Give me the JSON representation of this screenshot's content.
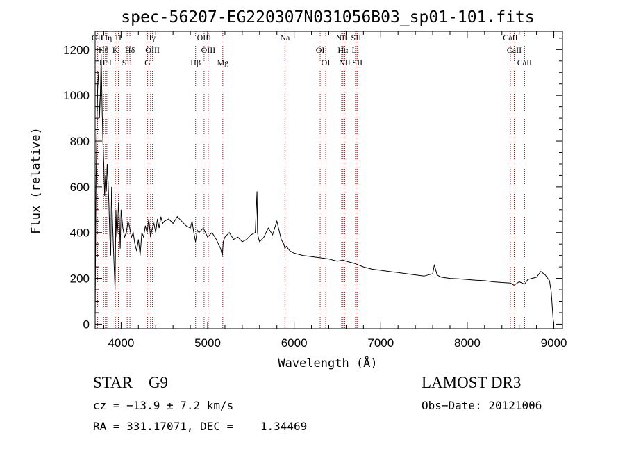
{
  "chart_data": {
    "type": "line",
    "title": "spec-56207-EG220307N031056B03_sp01-101.fits",
    "xlabel": "Wavelength (Å)",
    "ylabel": "Flux (relative)",
    "xlim": [
      3700,
      9100
    ],
    "ylim": [
      -20,
      1280
    ],
    "xticks": [
      4000,
      5000,
      6000,
      7000,
      8000,
      9000
    ],
    "yticks": [
      0,
      200,
      400,
      600,
      800,
      1000,
      1200
    ],
    "grid": false,
    "series": [
      {
        "name": "flux",
        "x": [
          3700,
          3710,
          3720,
          3730,
          3740,
          3750,
          3760,
          3770,
          3780,
          3790,
          3800,
          3810,
          3820,
          3830,
          3840,
          3850,
          3860,
          3870,
          3880,
          3890,
          3900,
          3910,
          3920,
          3930,
          3940,
          3950,
          3960,
          3970,
          3980,
          3990,
          4000,
          4020,
          4040,
          4060,
          4080,
          4100,
          4120,
          4140,
          4160,
          4180,
          4200,
          4220,
          4240,
          4260,
          4280,
          4300,
          4320,
          4340,
          4360,
          4380,
          4400,
          4420,
          4440,
          4460,
          4480,
          4500,
          4550,
          4600,
          4650,
          4700,
          4750,
          4800,
          4820,
          4840,
          4860,
          4880,
          4900,
          4950,
          5000,
          5050,
          5100,
          5150,
          5170,
          5180,
          5200,
          5250,
          5300,
          5350,
          5400,
          5450,
          5500,
          5550,
          5570,
          5577,
          5585,
          5600,
          5650,
          5700,
          5750,
          5800,
          5850,
          5880,
          5893,
          5910,
          5950,
          6000,
          6100,
          6200,
          6300,
          6400,
          6500,
          6563,
          6600,
          6700,
          6800,
          6900,
          7000,
          7100,
          7200,
          7300,
          7400,
          7500,
          7600,
          7620,
          7650,
          7700,
          7800,
          7900,
          8000,
          8100,
          8200,
          8300,
          8400,
          8500,
          8540,
          8600,
          8662,
          8700,
          8800,
          8850,
          8900,
          8950,
          8970,
          8990,
          9000
        ],
        "y": [
          20,
          600,
          850,
          1050,
          1100,
          900,
          1000,
          1180,
          950,
          800,
          700,
          560,
          650,
          580,
          700,
          620,
          520,
          380,
          300,
          600,
          460,
          350,
          250,
          150,
          500,
          380,
          420,
          530,
          460,
          330,
          500,
          420,
          380,
          400,
          450,
          420,
          380,
          400,
          350,
          320,
          370,
          300,
          400,
          380,
          430,
          400,
          460,
          380,
          420,
          440,
          400,
          460,
          420,
          470,
          440,
          450,
          460,
          440,
          470,
          450,
          430,
          420,
          450,
          400,
          360,
          410,
          400,
          420,
          380,
          400,
          370,
          330,
          300,
          360,
          380,
          400,
          370,
          380,
          360,
          370,
          390,
          400,
          580,
          400,
          380,
          360,
          380,
          420,
          390,
          450,
          370,
          350,
          330,
          340,
          320,
          310,
          300,
          295,
          290,
          285,
          275,
          280,
          275,
          265,
          250,
          240,
          235,
          230,
          225,
          220,
          215,
          210,
          220,
          260,
          215,
          205,
          200,
          198,
          195,
          192,
          190,
          185,
          182,
          180,
          170,
          185,
          175,
          195,
          205,
          230,
          215,
          190,
          140,
          30,
          0
        ]
      }
    ],
    "lines": [
      {
        "name": "OII",
        "wave": 3727
      },
      {
        "name": "Hθ",
        "wave": 3798
      },
      {
        "name": "HeI",
        "wave": 3819
      },
      {
        "name": "Hη",
        "wave": 3835
      },
      {
        "name": "K",
        "wave": 3934
      },
      {
        "name": "SII",
        "wave": 4070
      },
      {
        "name": "H",
        "wave": 3969
      },
      {
        "name": "Hδ",
        "wave": 4102
      },
      {
        "name": "G",
        "wave": 4305
      },
      {
        "name": "Hγ",
        "wave": 4341
      },
      {
        "name": "OIII",
        "wave": 4363
      },
      {
        "name": "Hβ",
        "wave": 4861
      },
      {
        "name": "OIII",
        "wave": 4959
      },
      {
        "name": "OIII",
        "wave": 5007
      },
      {
        "name": "Mg",
        "wave": 5175
      },
      {
        "name": "Na",
        "wave": 5893
      },
      {
        "name": "OI",
        "wave": 6300
      },
      {
        "name": "OI",
        "wave": 6364
      },
      {
        "name": "NII",
        "wave": 6548
      },
      {
        "name": "Hα",
        "wave": 6563
      },
      {
        "name": "NII",
        "wave": 6584
      },
      {
        "name": "SII",
        "wave": 6716
      },
      {
        "name": "Li",
        "wave": 6708
      },
      {
        "name": "SII",
        "wave": 6731
      },
      {
        "name": "CaII",
        "wave": 8498
      },
      {
        "name": "CaII",
        "wave": 8542
      },
      {
        "name": "CaII",
        "wave": 8662
      }
    ]
  },
  "info": {
    "classification": "STAR    G9",
    "survey": "LAMOST DR3",
    "cz": "cz = −13.9 ± 7.2 km/s",
    "obs_date": "Obs−Date: 20121006",
    "coords": "RA = 331.17071, DEC =    1.34469"
  },
  "colors": {
    "spectrum": "#000000",
    "line_marker": "#c00000"
  }
}
